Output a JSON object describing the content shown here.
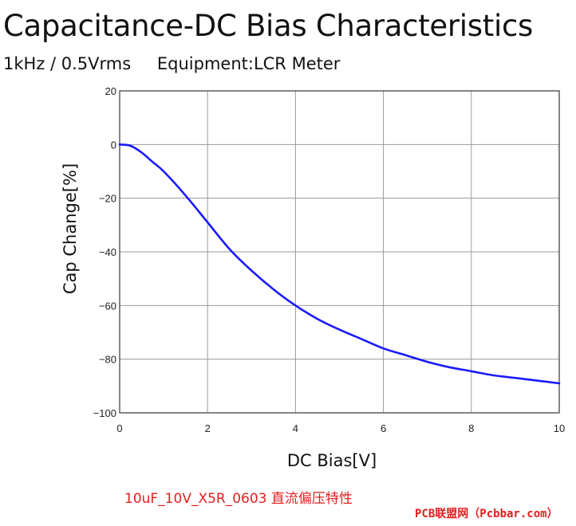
{
  "header": {
    "title": "Capacitance-DC Bias Characteristics",
    "conditions": "1kHz / 0.5Vrms",
    "equipment": "Equipment:LCR Meter"
  },
  "chart_data": {
    "type": "line",
    "xlabel": "DC Bias[V]",
    "ylabel": "Cap Change[%]",
    "xlim": [
      0,
      10
    ],
    "ylim": [
      -100,
      20
    ],
    "xticks": [
      0,
      2,
      4,
      6,
      8,
      10
    ],
    "yticks": [
      20,
      0,
      -20,
      -40,
      -60,
      -80,
      -100
    ],
    "grid": true,
    "series_color": "#1a1aff",
    "series": [
      {
        "x": [
          0,
          0.25,
          0.5,
          0.75,
          1.0,
          1.5,
          2.0,
          2.5,
          3.0,
          3.5,
          4.0,
          4.5,
          5.0,
          5.5,
          6.0,
          6.5,
          7.0,
          7.5,
          8.0,
          8.5,
          9.0,
          9.5,
          10.0
        ],
        "values": [
          0,
          -0.5,
          -3,
          -6.5,
          -10,
          -19,
          -29,
          -39,
          -47,
          -54,
          -60,
          -65,
          -69,
          -72.5,
          -76,
          -78.5,
          -81,
          -83,
          -84.5,
          -86,
          -87,
          -88,
          -89
        ]
      }
    ]
  },
  "footer": {
    "caption": "10uF_10V_X5R_0603 直流偏压特性",
    "watermark": "PCB联盟网（Pcbbar.com）"
  }
}
